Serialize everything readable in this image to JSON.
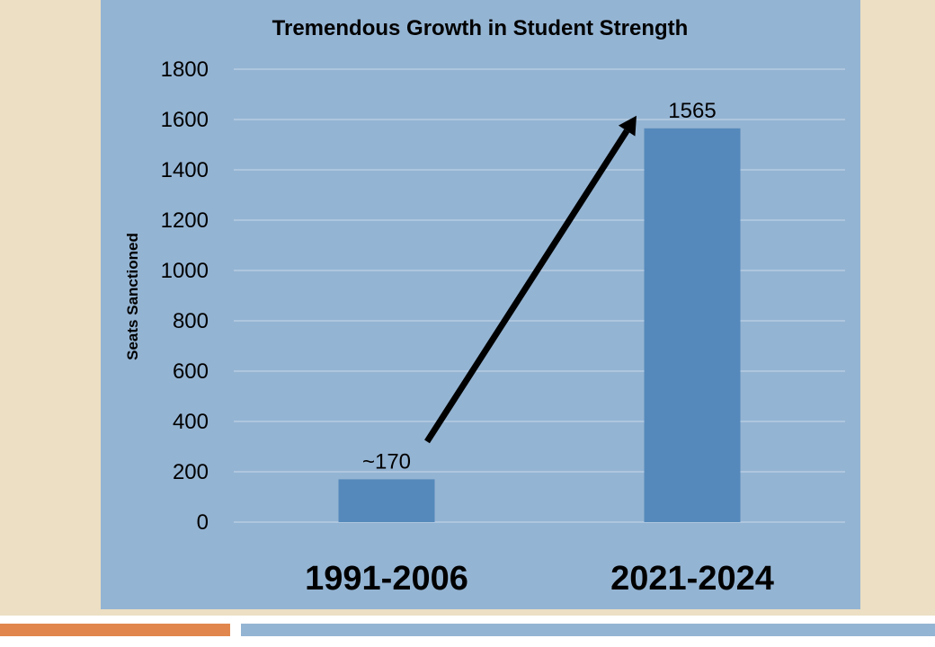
{
  "chart_data": {
    "type": "bar",
    "title": "Tremendous Growth in Student Strength",
    "ylabel": "Seats Sanctioned",
    "xlabel": "",
    "categories": [
      "1991-2006",
      "2021-2024"
    ],
    "values": [
      170,
      1565
    ],
    "data_labels": [
      "~170",
      "1565"
    ],
    "ylim": [
      0,
      1800
    ],
    "yticks": [
      0,
      200,
      400,
      600,
      800,
      1000,
      1200,
      1400,
      1600,
      1800
    ],
    "grid": true,
    "legend": "none",
    "annotation": "growth-arrow",
    "colors": {
      "bar": "#5589bb",
      "panel": "#94b4d3",
      "grid": "#c9d9ea",
      "arrow": "#000000",
      "slide_background": "#ecdfc3",
      "footer_left": "#e1874e",
      "footer_right": "#94b4d3"
    }
  }
}
